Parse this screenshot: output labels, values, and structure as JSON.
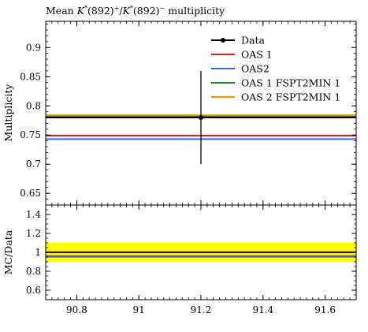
{
  "chart_data": [
    {
      "type": "line",
      "title": "Mean K*(892)+/K*(892)− multiplicity",
      "title_parts": {
        "pre": "Mean ",
        "k1": "K",
        "sup1": "*",
        "mid1": "(892)",
        "sup2": "+",
        "slash": "/",
        "k2": "K",
        "sup3": "*",
        "mid2": "(892)",
        "sup4": "−",
        "post": " multiplicity"
      },
      "ylabel": "Multiplicity",
      "xlim": [
        90.7,
        91.7
      ],
      "ylim": [
        0.63,
        0.945
      ],
      "yticks": [
        0.65,
        0.7,
        0.75,
        0.8,
        0.85,
        0.9
      ],
      "ytick_labels": [
        "0.65",
        "0.7",
        "0.75",
        "0.8",
        "0.85",
        "0.9"
      ],
      "grid": false,
      "legend_position": "top-right",
      "data": {
        "name": "Data",
        "x": 91.2,
        "y": 0.78,
        "yerr": [
          0.7,
          0.86
        ],
        "color": "#000000"
      },
      "series": [
        {
          "name": "OAS 1",
          "y": 0.749,
          "color": "#e41a1c"
        },
        {
          "name": "OAS2",
          "y": 0.743,
          "color": "#3366ff"
        },
        {
          "name": "OAS 1 FSPT2MIN 1",
          "y": 0.782,
          "color": "#1a8a1a"
        },
        {
          "name": "OAS 2 FSPT2MIN 1",
          "y": 0.784,
          "color": "#ff8c00"
        }
      ]
    },
    {
      "type": "line",
      "ylabel": "MC/Data",
      "xlim": [
        90.7,
        91.7
      ],
      "ylim": [
        0.5,
        1.5
      ],
      "yticks": [
        0.6,
        0.8,
        1.0,
        1.2,
        1.4
      ],
      "ytick_labels": [
        "0.6",
        "0.8",
        "1",
        "1.2",
        "1.4"
      ],
      "xticks": [
        90.8,
        91.0,
        91.2,
        91.4,
        91.6
      ],
      "xtick_labels": [
        "90.8",
        "91",
        "91.2",
        "91.4",
        "91.6"
      ],
      "band": {
        "low": 0.897,
        "high": 1.103,
        "color": "#ffff00"
      },
      "reference": 1.0,
      "series": [
        {
          "name": "OAS 1",
          "y": 0.96,
          "color": "#e41a1c"
        },
        {
          "name": "OAS2",
          "y": 0.953,
          "color": "#3366ff"
        },
        {
          "name": "OAS 1 FSPT2MIN 1",
          "y": 1.0,
          "color": "#1a8a1a"
        },
        {
          "name": "OAS 2 FSPT2MIN 1",
          "y": 1.005,
          "color": "#ff8c00"
        }
      ]
    }
  ]
}
